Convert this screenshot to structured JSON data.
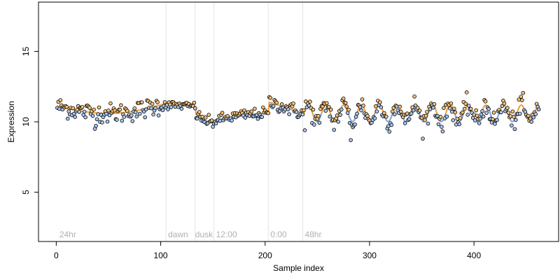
{
  "chart_data": {
    "type": "scatter",
    "title": "",
    "xlabel": "Sample index",
    "ylabel": "Expression",
    "xlim": [
      -17,
      481
    ],
    "ylim": [
      1.5,
      18.5
    ],
    "x_ticks": [
      0,
      100,
      200,
      300,
      400
    ],
    "y_ticks": [
      5,
      10,
      15
    ],
    "grid": false,
    "legend": "none",
    "colors": {
      "point_stroke": "#000000",
      "orange_fill": "#f5c27a",
      "blue_fill": "#a9c5ee",
      "orange_line": "#f0a040",
      "blue_line": "#7fa6e0",
      "vline": "#e4e4e4",
      "annotation": "#b0b0b0"
    },
    "vlines": [
      105,
      133,
      151,
      203,
      236
    ],
    "annotations": [
      {
        "x": 3,
        "y": 2.0,
        "text": "24hr"
      },
      {
        "x": 107,
        "y": 2.0,
        "text": "dawn"
      },
      {
        "x": 133,
        "y": 2.0,
        "text": "dusk"
      },
      {
        "x": 153,
        "y": 2.0,
        "text": "12:00"
      },
      {
        "x": 205,
        "y": 2.0,
        "text": "0:00"
      },
      {
        "x": 238,
        "y": 2.0,
        "text": "48hr"
      }
    ],
    "segments": [
      {
        "x0": 1,
        "x1": 105,
        "mode": "trend",
        "start": 11.1,
        "end": 11.3,
        "sag": 0.6,
        "noise": 0.35
      },
      {
        "x0": 106,
        "x1": 133,
        "mode": "trend",
        "start": 11.2,
        "end": 11.1,
        "sag": 0.0,
        "noise": 0.15
      },
      {
        "x0": 134,
        "x1": 151,
        "mode": "trend",
        "start": 10.5,
        "end": 9.9,
        "sag": 0.1,
        "noise": 0.2
      },
      {
        "x0": 152,
        "x1": 203,
        "mode": "trend",
        "start": 10.1,
        "end": 10.6,
        "sag": -0.1,
        "noise": 0.2
      },
      {
        "x0": 204,
        "x1": 236,
        "mode": "trend",
        "start": 11.4,
        "end": 10.6,
        "sag": 0.0,
        "noise": 0.25
      },
      {
        "x0": 237,
        "x1": 462,
        "mode": "wave",
        "center": 10.6,
        "amp": 0.6,
        "period": 17,
        "noise": 0.35
      }
    ],
    "outliers": [
      {
        "x": 238,
        "y": 9.4
      },
      {
        "x": 282,
        "y": 8.7
      },
      {
        "x": 283,
        "y": 9.8
      },
      {
        "x": 37,
        "y": 9.5
      }
    ]
  }
}
